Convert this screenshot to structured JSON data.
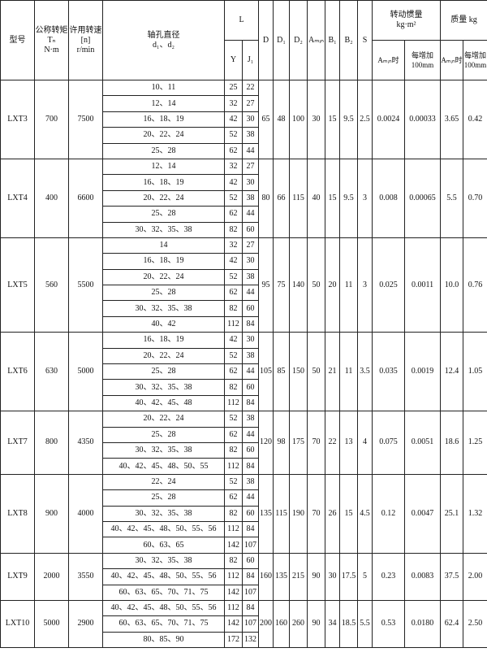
{
  "header": {
    "model": "型号",
    "torque": {
      "label": "公称转矩",
      "symbol": "Tₙ",
      "unit": "N·m"
    },
    "speed": {
      "label": "许用转速",
      "symbol": "[n]",
      "unit": "r/min"
    },
    "bore": {
      "label": "轴孔直径",
      "symbol": "d₁、d₂"
    },
    "L": {
      "label": "L",
      "Y": "Y",
      "J1": "J₁"
    },
    "D": "D",
    "D1": "D₁",
    "D2": "D₂",
    "Amin": "Aₘᵢₙ",
    "B1": "B₁",
    "B2": "B₂",
    "S": "S",
    "inertia": {
      "label": "转动惯量",
      "unit": "kg·m²",
      "amin": "Aₘᵢₙ时",
      "per100": "每增加100mm"
    },
    "mass": {
      "label": "质量 kg",
      "amin": "Aₘᵢₙ时",
      "per100": "每增加100mm"
    }
  },
  "models": [
    {
      "model": "LXT3",
      "torque": "700",
      "speed": "7500",
      "bores": [
        {
          "d": "10、11",
          "Y": "25",
          "J1": "22"
        },
        {
          "d": "12、14",
          "Y": "32",
          "J1": "27"
        },
        {
          "d": "16、18、19",
          "Y": "42",
          "J1": "30"
        },
        {
          "d": "20、22、24",
          "Y": "52",
          "J1": "38"
        },
        {
          "d": "25、28",
          "Y": "62",
          "J1": "44"
        }
      ],
      "D": "65",
      "D1": "48",
      "D2": "100",
      "Amin": "30",
      "B1": "15",
      "B2": "9.5",
      "S": "2.5",
      "inertia_amin": "0.0024",
      "inertia_per100": "0.00033",
      "mass_amin": "3.65",
      "mass_per100": "0.42"
    },
    {
      "model": "LXT4",
      "torque": "400",
      "speed": "6600",
      "bores": [
        {
          "d": "12、14",
          "Y": "32",
          "J1": "27"
        },
        {
          "d": "16、18、19",
          "Y": "42",
          "J1": "30"
        },
        {
          "d": "20、22、24",
          "Y": "52",
          "J1": "38"
        },
        {
          "d": "25、28",
          "Y": "62",
          "J1": "44"
        },
        {
          "d": "30、32、35、38",
          "Y": "82",
          "J1": "60"
        }
      ],
      "D": "80",
      "D1": "66",
      "D2": "115",
      "Amin": "40",
      "B1": "15",
      "B2": "9.5",
      "S": "3",
      "inertia_amin": "0.008",
      "inertia_per100": "0.00065",
      "mass_amin": "5.5",
      "mass_per100": "0.70"
    },
    {
      "model": "LXT5",
      "torque": "560",
      "speed": "5500",
      "bores": [
        {
          "d": "14",
          "Y": "32",
          "J1": "27"
        },
        {
          "d": "16、18、19",
          "Y": "42",
          "J1": "30"
        },
        {
          "d": "20、22、24",
          "Y": "52",
          "J1": "38"
        },
        {
          "d": "25、28",
          "Y": "62",
          "J1": "44"
        },
        {
          "d": "30、32、35、38",
          "Y": "82",
          "J1": "60"
        },
        {
          "d": "40、42",
          "Y": "112",
          "J1": "84"
        }
      ],
      "D": "95",
      "D1": "75",
      "D2": "140",
      "Amin": "50",
      "B1": "20",
      "B2": "11",
      "S": "3",
      "inertia_amin": "0.025",
      "inertia_per100": "0.0011",
      "mass_amin": "10.0",
      "mass_per100": "0.76"
    },
    {
      "model": "LXT6",
      "torque": "630",
      "speed": "5000",
      "bores": [
        {
          "d": "16、18、19",
          "Y": "42",
          "J1": "30"
        },
        {
          "d": "20、22、24",
          "Y": "52",
          "J1": "38"
        },
        {
          "d": "25、28",
          "Y": "62",
          "J1": "44"
        },
        {
          "d": "30、32、35、38",
          "Y": "82",
          "J1": "60"
        },
        {
          "d": "40、42、45、48",
          "Y": "112",
          "J1": "84"
        }
      ],
      "D": "105",
      "D1": "85",
      "D2": "150",
      "Amin": "50",
      "B1": "21",
      "B2": "11",
      "S": "3.5",
      "inertia_amin": "0.035",
      "inertia_per100": "0.0019",
      "mass_amin": "12.4",
      "mass_per100": "1.05"
    },
    {
      "model": "LXT7",
      "torque": "800",
      "speed": "4350",
      "bores": [
        {
          "d": "20、22、24",
          "Y": "52",
          "J1": "38"
        },
        {
          "d": "25、28",
          "Y": "62",
          "J1": "44"
        },
        {
          "d": "30、32、35、38",
          "Y": "82",
          "J1": "60"
        },
        {
          "d": "40、42、45、48、50、55",
          "Y": "112",
          "J1": "84"
        }
      ],
      "D": "120",
      "D1": "98",
      "D2": "175",
      "Amin": "70",
      "B1": "22",
      "B2": "13",
      "S": "4",
      "inertia_amin": "0.075",
      "inertia_per100": "0.0051",
      "mass_amin": "18.6",
      "mass_per100": "1.25"
    },
    {
      "model": "LXT8",
      "torque": "900",
      "speed": "4000",
      "bores": [
        {
          "d": "22、24",
          "Y": "52",
          "J1": "38"
        },
        {
          "d": "25、28",
          "Y": "62",
          "J1": "44"
        },
        {
          "d": "30、32、35、38",
          "Y": "82",
          "J1": "60"
        },
        {
          "d": "40、42、45、48、50、55、56",
          "Y": "112",
          "J1": "84"
        },
        {
          "d": "60、63、65",
          "Y": "142",
          "J1": "107"
        }
      ],
      "D": "135",
      "D1": "115",
      "D2": "190",
      "Amin": "70",
      "B1": "26",
      "B2": "15",
      "S": "4.5",
      "inertia_amin": "0.12",
      "inertia_per100": "0.0047",
      "mass_amin": "25.1",
      "mass_per100": "1.32"
    },
    {
      "model": "LXT9",
      "torque": "2000",
      "speed": "3550",
      "bores": [
        {
          "d": "30、32、35、38",
          "Y": "82",
          "J1": "60"
        },
        {
          "d": "40、42、45、48、50、55、56",
          "Y": "112",
          "J1": "84"
        },
        {
          "d": "60、63、65、70、71、75",
          "Y": "142",
          "J1": "107"
        }
      ],
      "D": "160",
      "D1": "135",
      "D2": "215",
      "Amin": "90",
      "B1": "30",
      "B2": "17.5",
      "S": "5",
      "inertia_amin": "0.23",
      "inertia_per100": "0.0083",
      "mass_amin": "37.5",
      "mass_per100": "2.00"
    },
    {
      "model": "LXT10",
      "torque": "5000",
      "speed": "2900",
      "bores": [
        {
          "d": "40、42、45、48、50、55、56",
          "Y": "112",
          "J1": "84"
        },
        {
          "d": "60、63、65、70、71、75",
          "Y": "142",
          "J1": "107"
        },
        {
          "d": "80、85、90",
          "Y": "172",
          "J1": "132"
        }
      ],
      "D": "200",
      "D1": "160",
      "D2": "260",
      "Amin": "90",
      "B1": "34",
      "B2": "18.5",
      "S": "5.5",
      "inertia_amin": "0.53",
      "inertia_per100": "0.0180",
      "mass_amin": "62.4",
      "mass_per100": "2.50"
    }
  ]
}
